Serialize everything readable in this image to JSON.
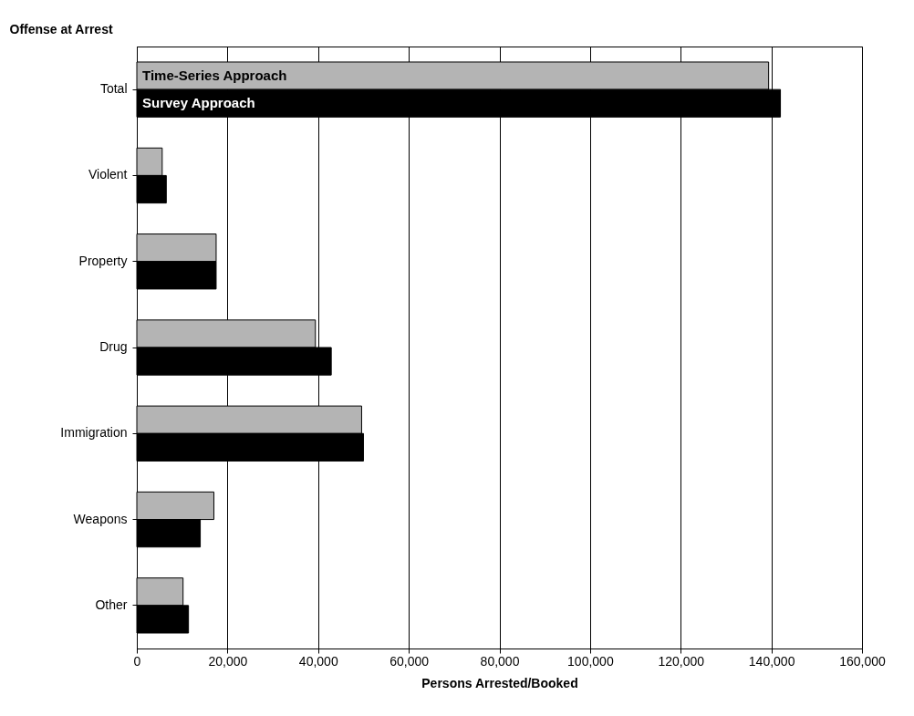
{
  "chart_data": {
    "type": "bar",
    "orientation": "horizontal",
    "xlabel": "Persons Arrested/Booked",
    "ylabel": "Offense at Arrest",
    "categories": [
      "Total",
      "Violent",
      "Property",
      "Drug",
      "Immigration",
      "Weapons",
      "Other"
    ],
    "series": [
      {
        "name": "Time-Series Approach",
        "color": "#b4b4b4",
        "values": [
          139400,
          5600,
          17500,
          39400,
          49600,
          17000,
          10200
        ]
      },
      {
        "name": "Survey Approach",
        "color": "#000000",
        "values": [
          142000,
          6500,
          17500,
          42900,
          50000,
          14000,
          11400
        ]
      }
    ],
    "xlim": [
      0,
      160000
    ],
    "xticks": [
      0,
      {
        "value": 20000,
        "label": "20,000"
      },
      {
        "value": 40000,
        "label": "40,000"
      },
      {
        "value": 60000,
        "label": "60,000"
      },
      {
        "value": 80000,
        "label": "80,000"
      },
      {
        "value": 100000,
        "label": "100,000"
      },
      {
        "value": 120000,
        "label": "120,000"
      },
      {
        "value": 140000,
        "label": "140,000"
      },
      {
        "value": 160000,
        "label": "160,000"
      }
    ],
    "grid": "x",
    "legend": false
  }
}
